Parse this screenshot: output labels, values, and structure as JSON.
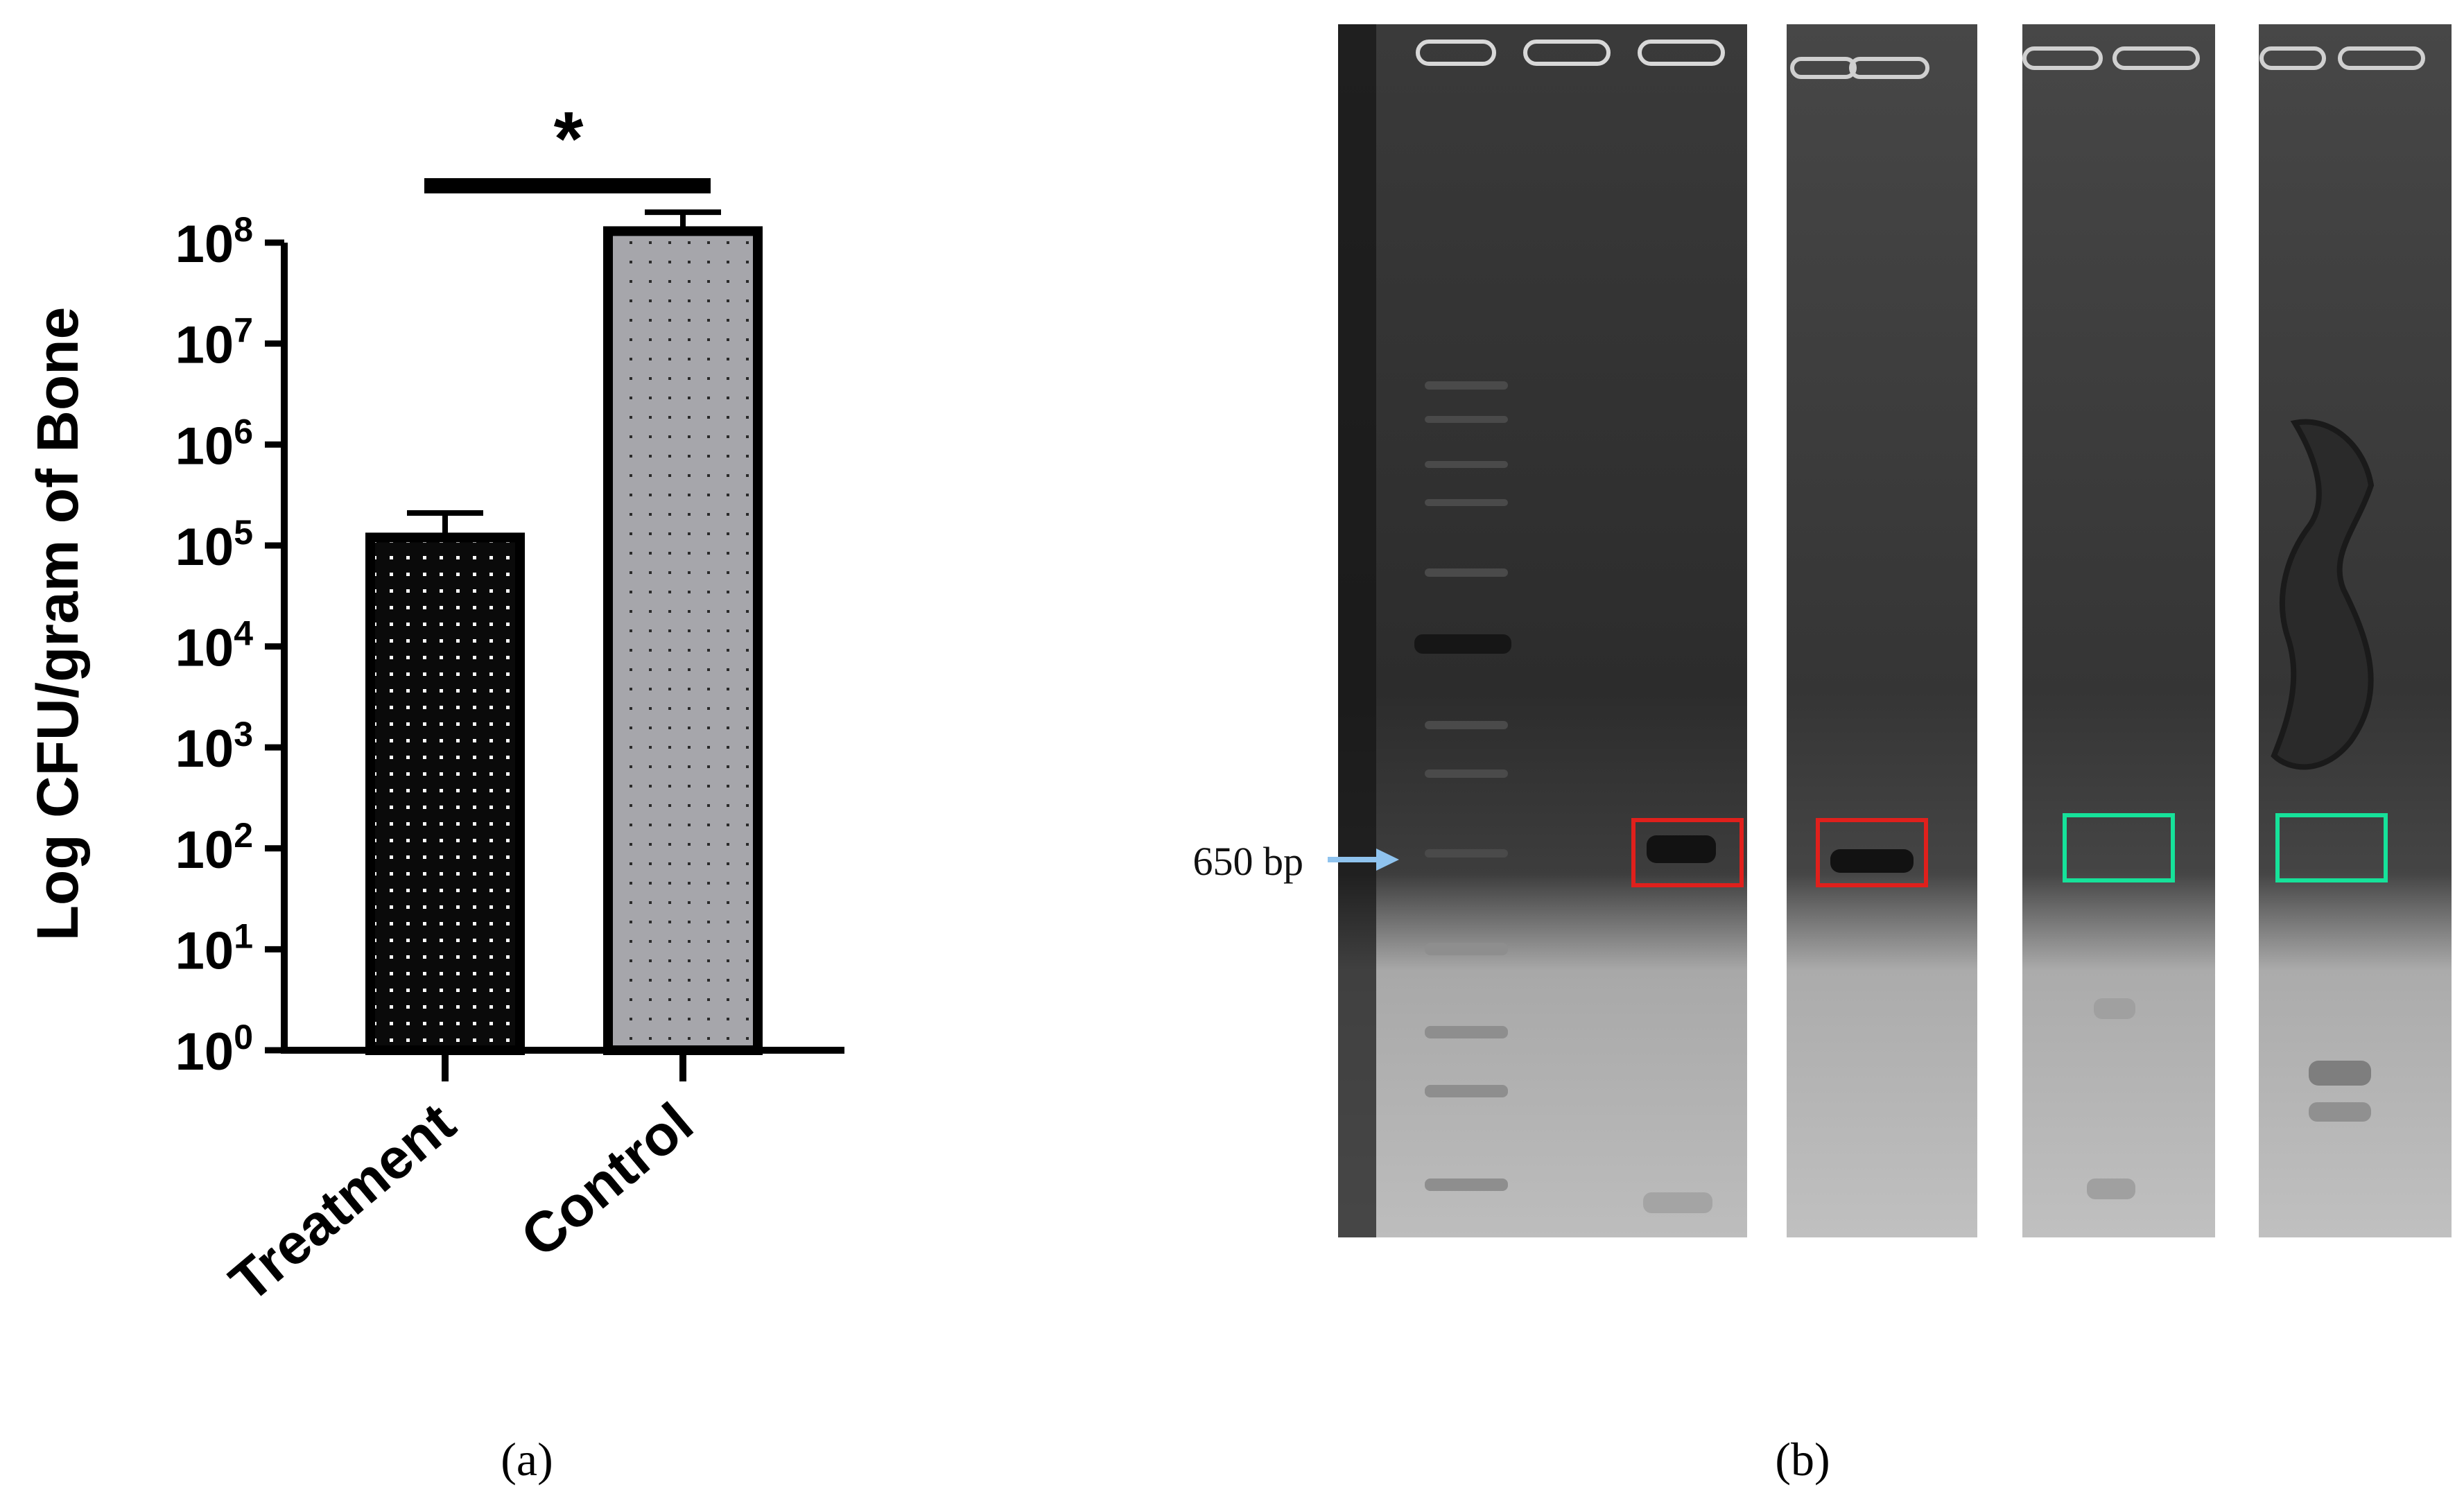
{
  "panel_a": {
    "caption": "(a)",
    "significance": "*"
  },
  "panel_b": {
    "caption": "(b)",
    "marker_label": "650 bp"
  },
  "colors": {
    "treatment_fill": "#0a0a0a",
    "control_fill": "#a6a6ab",
    "highlight_red": "#e0201c",
    "highlight_green": "#16e29a",
    "arrow": "#8fc3ee"
  },
  "chart_data": {
    "type": "bar",
    "scale": "log",
    "categories": [
      "Treatment",
      "Control"
    ],
    "values": [
      120000,
      130000000
    ],
    "error_upper": [
      210000,
      200000000
    ],
    "ylabel": "Log CFU/gram of Bone",
    "ylim": [
      1,
      100000000
    ],
    "ticks": [
      {
        "base": "10",
        "exp": "0"
      },
      {
        "base": "10",
        "exp": "1"
      },
      {
        "base": "10",
        "exp": "2"
      },
      {
        "base": "10",
        "exp": "3"
      },
      {
        "base": "10",
        "exp": "4"
      },
      {
        "base": "10",
        "exp": "5"
      },
      {
        "base": "10",
        "exp": "6"
      },
      {
        "base": "10",
        "exp": "7"
      },
      {
        "base": "10",
        "exp": "8"
      }
    ],
    "annotation": "*"
  }
}
